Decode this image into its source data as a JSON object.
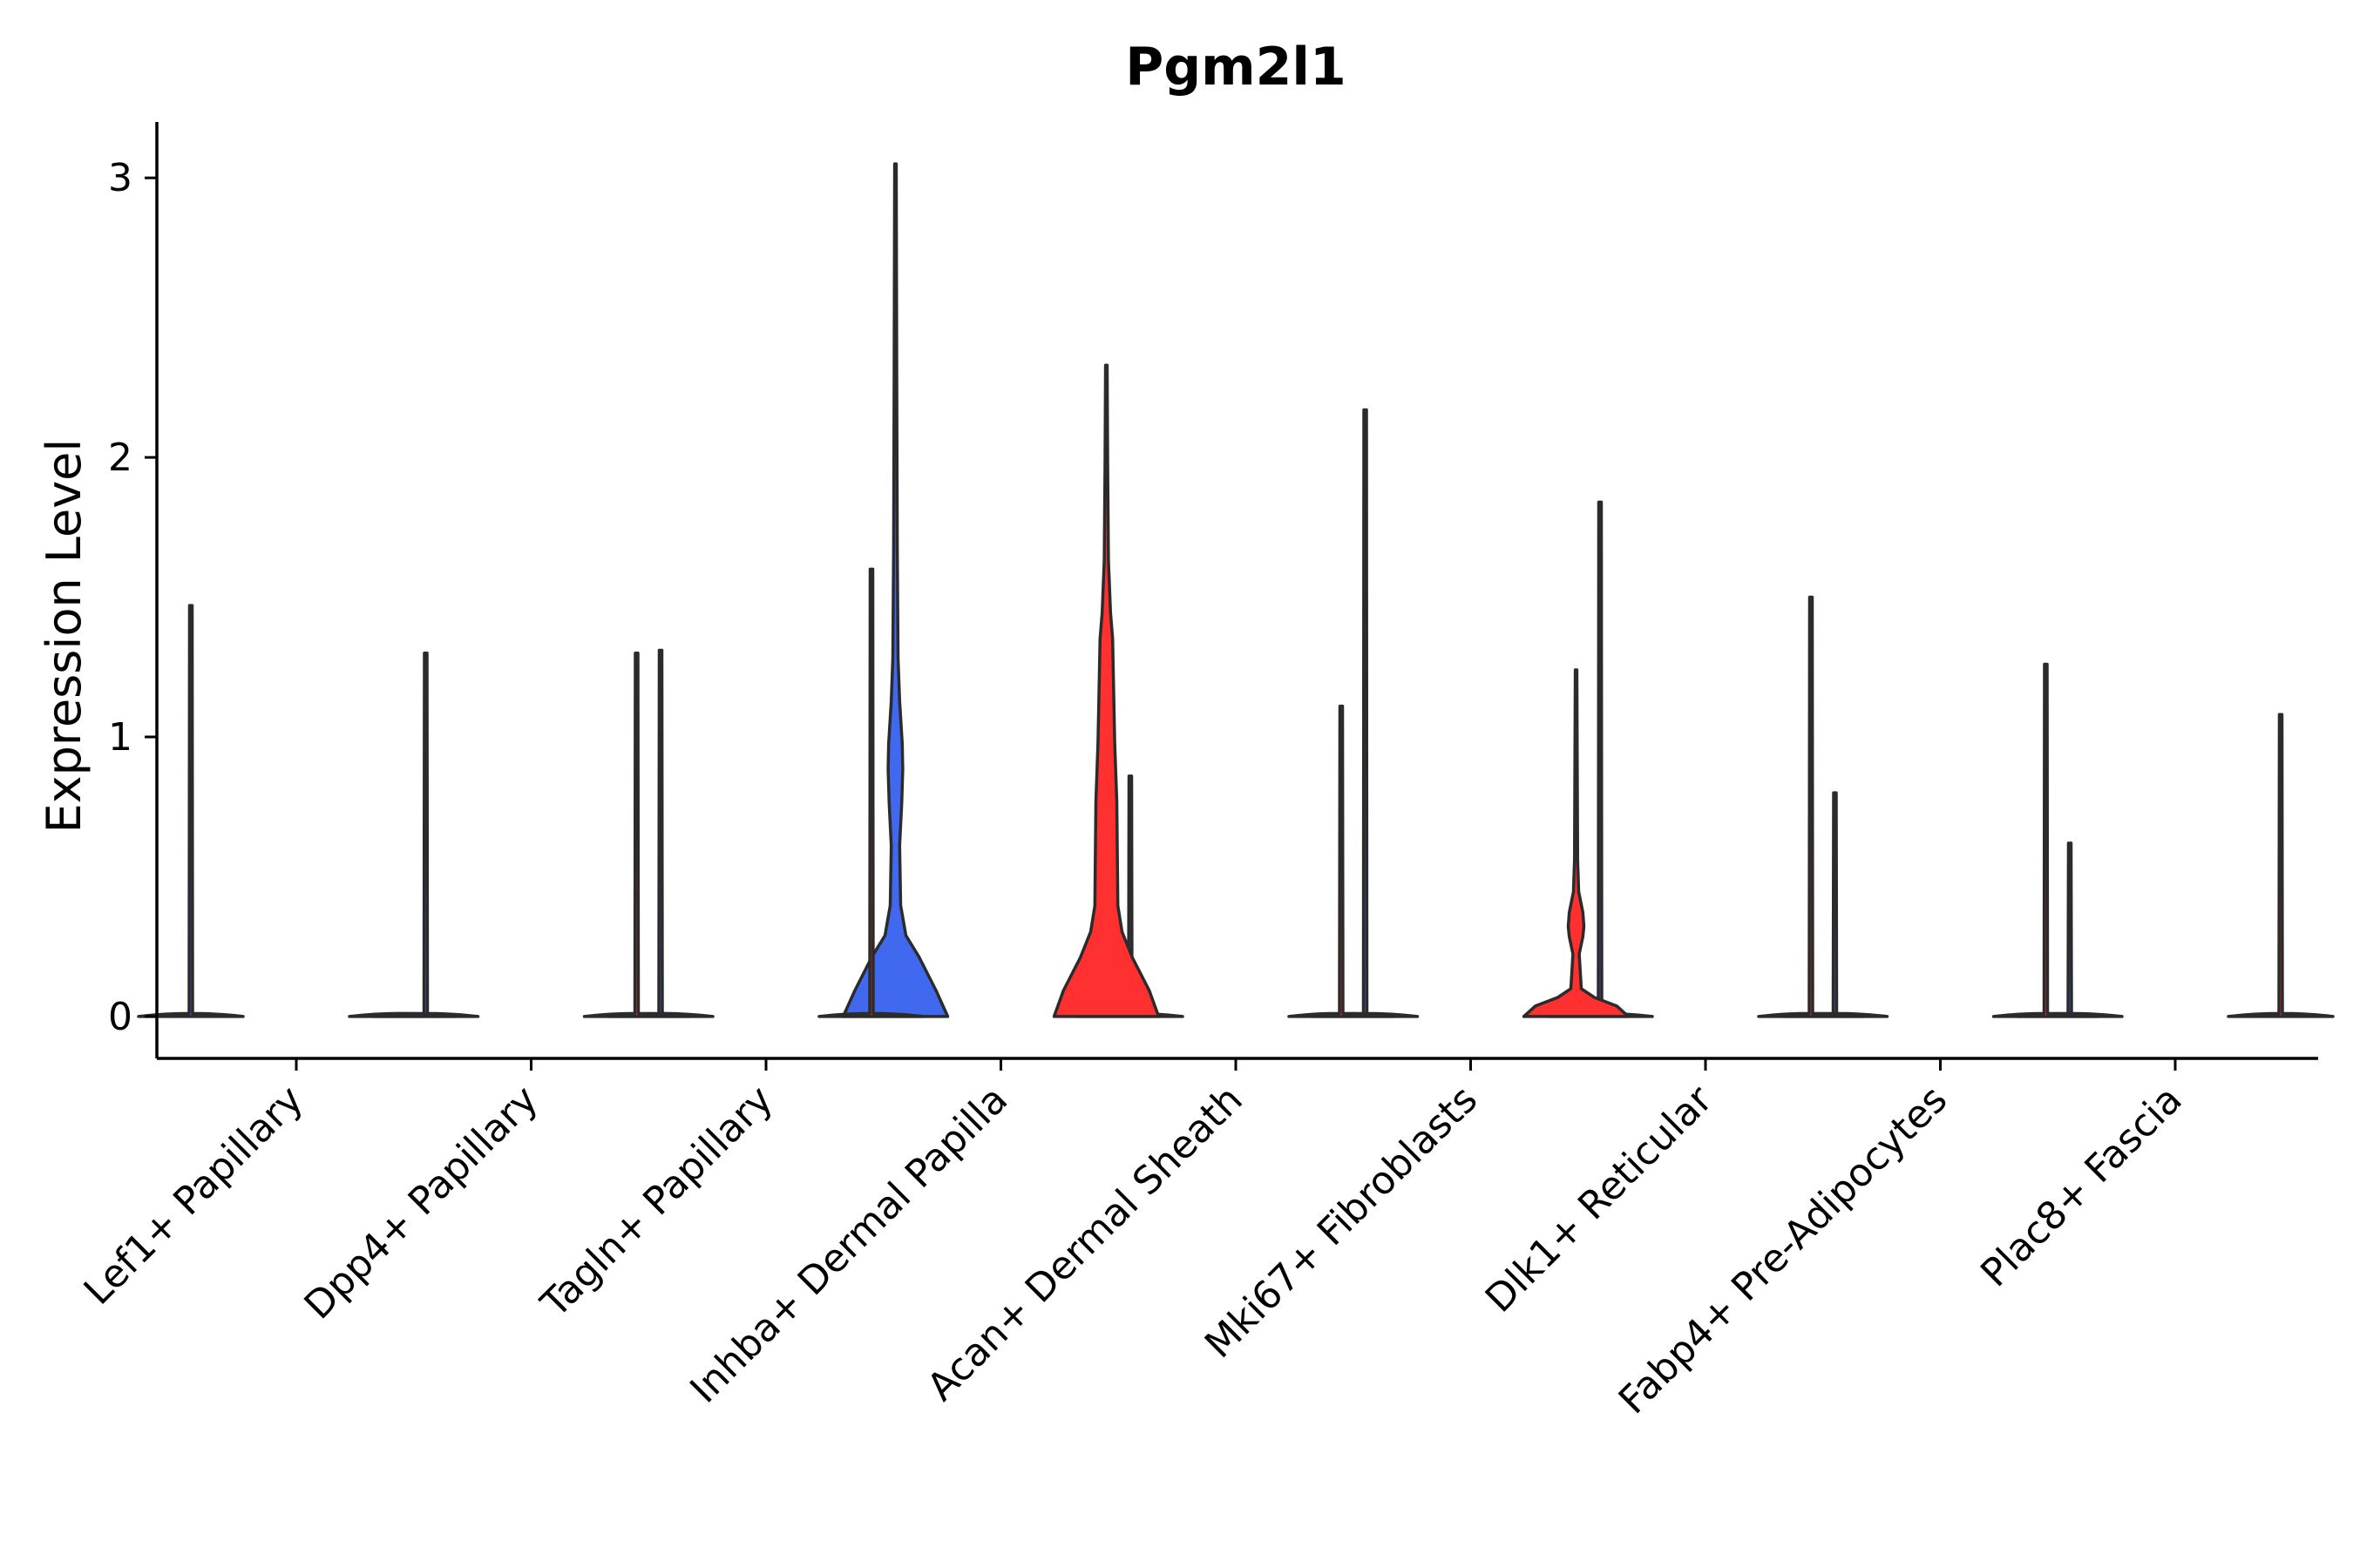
{
  "chart_data": {
    "type": "violin",
    "title": "Pgm2l1",
    "xlabel": "",
    "ylabel": "Expression Level",
    "ylim": [
      -0.15,
      3.2
    ],
    "yticks": [
      0,
      1,
      2,
      3
    ],
    "categories": [
      "Lef1+ Papillary",
      "Dpp4+ Papillary",
      "Tagln+ Papillary",
      "Inhba+ Dermal Papilla",
      "Acan+ Dermal Sheath",
      "Mki67+ Fibroblasts",
      "Dlk1+ Reticular",
      "Fabp4+ Pre-Adipocytes",
      "Plac8+ Fascia"
    ],
    "series": [
      {
        "color": "#4169f0",
        "max": [
          1.47,
          1.3,
          1.31,
          3.05,
          0.86,
          2.17,
          1.84,
          0.8,
          0.62
        ]
      },
      {
        "color": "#ff3030",
        "max": [
          0.0,
          1.3,
          1.6,
          2.33,
          1.11,
          1.24,
          1.5,
          1.26,
          1.08
        ]
      }
    ],
    "grid": false,
    "legend": "none"
  }
}
